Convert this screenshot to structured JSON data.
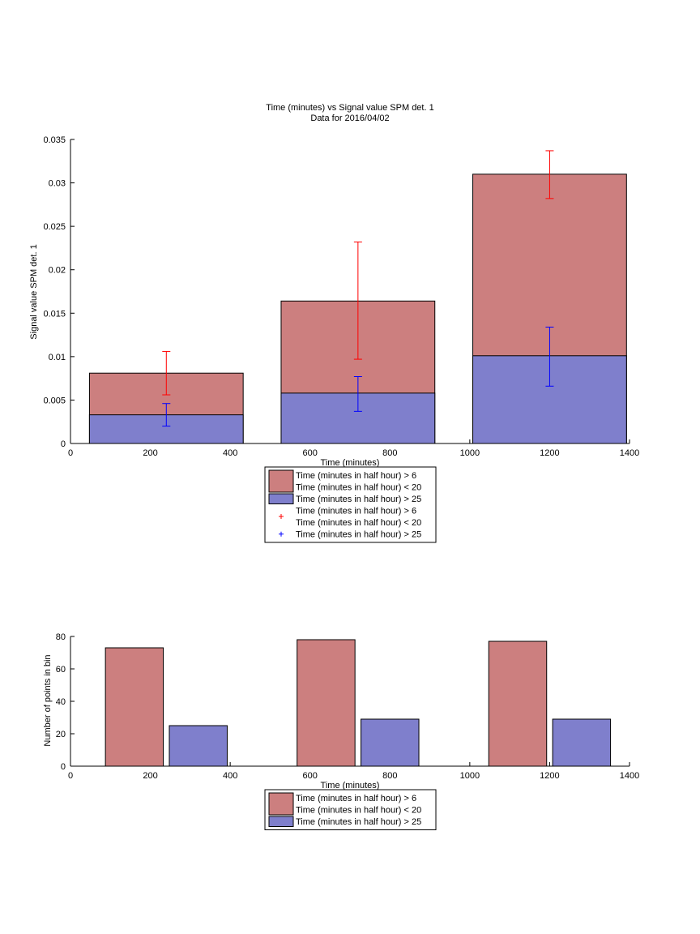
{
  "chart_data": [
    {
      "type": "bar",
      "title": "Time (minutes) vs Signal value SPM det. 1",
      "subtitle": "Data for 2016/04/02",
      "xlabel": "Time (minutes)",
      "ylabel": "Signal value SPM det. 1",
      "xlim": [
        0,
        1400
      ],
      "ylim": [
        0,
        0.035
      ],
      "xticks": [
        "0",
        "200",
        "400",
        "600",
        "800",
        "1000",
        "1200",
        "1400"
      ],
      "yticks": [
        "0",
        "0.005",
        "0.01",
        "0.015",
        "0.02",
        "0.025",
        "0.03",
        "0.035"
      ],
      "bar_width": 385,
      "x": [
        240,
        720,
        1200
      ],
      "series": [
        {
          "name": "Time (minutes in half hour) > 6 Time (minutes in half hour) < 20",
          "color": "#cc7f7f",
          "values": [
            0.0081,
            0.0164,
            0.031
          ]
        },
        {
          "name": "Time (minutes in half hour) > 25",
          "color": "#7f7fcc",
          "values": [
            0.0033,
            0.0058,
            0.0101
          ]
        }
      ],
      "errorbars": [
        {
          "name": "Time (minutes in half hour) > 6 Time (minutes in half hour) < 20",
          "color": "#ff0000",
          "x": [
            240,
            720,
            1200
          ],
          "center": [
            0.0081,
            0.0164,
            0.031
          ],
          "low": [
            0.0056,
            0.0097,
            0.0282
          ],
          "high": [
            0.0106,
            0.0232,
            0.0337
          ]
        },
        {
          "name": "Time (minutes in half hour) > 25",
          "color": "#0000ff",
          "x": [
            240,
            720,
            1200
          ],
          "center": [
            0.0033,
            0.0058,
            0.0101
          ],
          "low": [
            0.002,
            0.0037,
            0.0066
          ],
          "high": [
            0.0046,
            0.0077,
            0.0134
          ]
        }
      ],
      "legend": {
        "placement": "below",
        "entries": [
          {
            "kind": "patch",
            "color": "#cc7f7f",
            "lines": [
              "Time (minutes in half hour) > 6",
              "Time (minutes in half hour) < 20"
            ]
          },
          {
            "kind": "patch",
            "color": "#7f7fcc",
            "lines": [
              "Time (minutes in half hour) > 25"
            ]
          },
          {
            "kind": "marker",
            "color": "#ff0000",
            "lines": [
              "Time (minutes in half hour) > 6",
              "Time (minutes in half hour) < 20"
            ]
          },
          {
            "kind": "marker",
            "color": "#0000ff",
            "lines": [
              "Time (minutes in half hour) > 25"
            ]
          }
        ]
      },
      "grid": false
    },
    {
      "type": "bar",
      "title": "",
      "xlabel": "Time (minutes)",
      "ylabel": "Number of points in bin",
      "xlim": [
        0,
        1400
      ],
      "ylim": [
        0,
        80
      ],
      "xticks": [
        "0",
        "200",
        "400",
        "600",
        "800",
        "1000",
        "1200",
        "1400"
      ],
      "yticks": [
        "0",
        "20",
        "40",
        "60",
        "80"
      ],
      "bar_width": 145,
      "series": [
        {
          "name": "Time (minutes in half hour) > 6 Time (minutes in half hour) < 20",
          "color": "#cc7f7f",
          "x": [
            160,
            640,
            1120
          ],
          "values": [
            73,
            78,
            77
          ]
        },
        {
          "name": "Time (minutes in half hour) > 25",
          "color": "#7f7fcc",
          "x": [
            320,
            800,
            1280
          ],
          "values": [
            25,
            29,
            29
          ]
        }
      ],
      "legend": {
        "placement": "below",
        "entries": [
          {
            "kind": "patch",
            "color": "#cc7f7f",
            "lines": [
              "Time (minutes in half hour) > 6",
              "Time (minutes in half hour) < 20"
            ]
          },
          {
            "kind": "patch",
            "color": "#7f7fcc",
            "lines": [
              "Time (minutes in half hour) > 25"
            ]
          }
        ]
      },
      "grid": false
    }
  ]
}
